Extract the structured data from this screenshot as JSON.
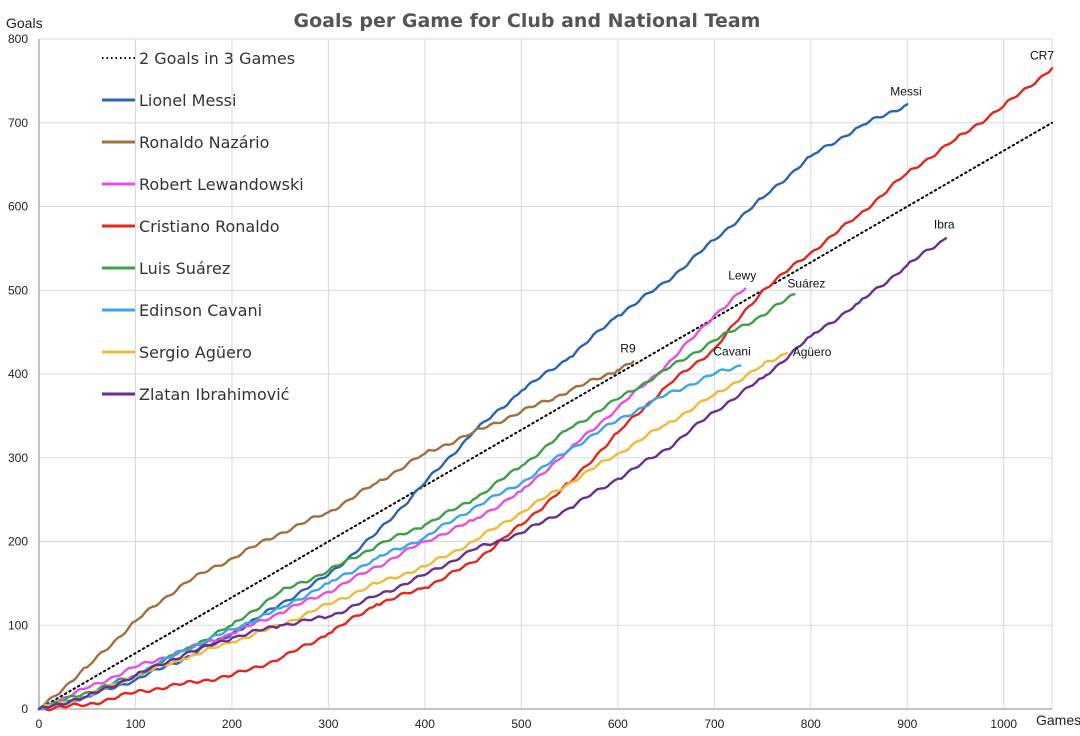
{
  "chart_data": {
    "type": "line",
    "title": "Goals per Game for Club and National Team",
    "xlabel": "Games",
    "ylabel": "Goals",
    "xlim": [
      0,
      1050
    ],
    "ylim": [
      0,
      800
    ],
    "xticks": [
      0,
      100,
      200,
      300,
      400,
      500,
      600,
      700,
      800,
      900,
      1000
    ],
    "yticks": [
      0,
      100,
      200,
      300,
      400,
      500,
      600,
      700,
      800
    ],
    "grid": true,
    "legend_position": "top-left",
    "series": [
      {
        "name": "2 Goals in 3 Games",
        "label": "",
        "color": "#000000",
        "style": "dotted",
        "points": [
          [
            0,
            0
          ],
          [
            1050,
            700
          ]
        ]
      },
      {
        "name": "Lionel Messi",
        "label": "Messi",
        "color": "#2a66ad",
        "style": "solid",
        "points": [
          [
            0,
            0
          ],
          [
            50,
            15
          ],
          [
            100,
            35
          ],
          [
            150,
            60
          ],
          [
            200,
            90
          ],
          [
            250,
            125
          ],
          [
            300,
            160
          ],
          [
            350,
            210
          ],
          [
            400,
            270
          ],
          [
            450,
            330
          ],
          [
            500,
            380
          ],
          [
            550,
            420
          ],
          [
            600,
            470
          ],
          [
            650,
            510
          ],
          [
            700,
            560
          ],
          [
            750,
            610
          ],
          [
            800,
            660
          ],
          [
            850,
            695
          ],
          [
            900,
            722
          ]
        ]
      },
      {
        "name": "Ronaldo Nazário",
        "label": "R9",
        "color": "#a0703e",
        "style": "solid",
        "points": [
          [
            0,
            0
          ],
          [
            50,
            50
          ],
          [
            100,
            105
          ],
          [
            150,
            150
          ],
          [
            200,
            180
          ],
          [
            250,
            210
          ],
          [
            300,
            235
          ],
          [
            350,
            270
          ],
          [
            400,
            305
          ],
          [
            450,
            330
          ],
          [
            500,
            355
          ],
          [
            550,
            380
          ],
          [
            600,
            405
          ],
          [
            616,
            415
          ]
        ]
      },
      {
        "name": "Robert Lewandowski",
        "label": "Lewy",
        "color": "#e84ee0",
        "style": "solid",
        "points": [
          [
            0,
            0
          ],
          [
            50,
            25
          ],
          [
            100,
            50
          ],
          [
            150,
            70
          ],
          [
            200,
            90
          ],
          [
            250,
            115
          ],
          [
            300,
            140
          ],
          [
            350,
            170
          ],
          [
            400,
            200
          ],
          [
            450,
            225
          ],
          [
            500,
            260
          ],
          [
            550,
            310
          ],
          [
            600,
            360
          ],
          [
            650,
            410
          ],
          [
            700,
            470
          ],
          [
            732,
            502
          ]
        ]
      },
      {
        "name": "Cristiano Ronaldo",
        "label": "CR7",
        "color": "#e0281e",
        "style": "solid",
        "points": [
          [
            0,
            0
          ],
          [
            50,
            5
          ],
          [
            100,
            20
          ],
          [
            150,
            30
          ],
          [
            200,
            40
          ],
          [
            250,
            60
          ],
          [
            300,
            90
          ],
          [
            350,
            125
          ],
          [
            400,
            145
          ],
          [
            450,
            175
          ],
          [
            500,
            220
          ],
          [
            550,
            270
          ],
          [
            600,
            330
          ],
          [
            650,
            385
          ],
          [
            700,
            430
          ],
          [
            750,
            500
          ],
          [
            800,
            545
          ],
          [
            850,
            590
          ],
          [
            900,
            640
          ],
          [
            950,
            680
          ],
          [
            1000,
            720
          ],
          [
            1050,
            765
          ]
        ]
      },
      {
        "name": "Luis Suárez",
        "label": "Suárez",
        "color": "#3da047",
        "style": "solid",
        "points": [
          [
            0,
            0
          ],
          [
            50,
            20
          ],
          [
            100,
            40
          ],
          [
            150,
            70
          ],
          [
            200,
            100
          ],
          [
            250,
            140
          ],
          [
            300,
            165
          ],
          [
            350,
            195
          ],
          [
            400,
            220
          ],
          [
            450,
            250
          ],
          [
            500,
            290
          ],
          [
            550,
            335
          ],
          [
            600,
            370
          ],
          [
            650,
            405
          ],
          [
            700,
            440
          ],
          [
            750,
            470
          ],
          [
            783,
            495
          ]
        ]
      },
      {
        "name": "Edinson Cavani",
        "label": "Cavani",
        "color": "#3ba6e8",
        "style": "solid",
        "points": [
          [
            0,
            0
          ],
          [
            50,
            15
          ],
          [
            100,
            40
          ],
          [
            150,
            70
          ],
          [
            200,
            95
          ],
          [
            250,
            120
          ],
          [
            300,
            150
          ],
          [
            350,
            180
          ],
          [
            400,
            205
          ],
          [
            450,
            240
          ],
          [
            500,
            270
          ],
          [
            550,
            310
          ],
          [
            600,
            345
          ],
          [
            650,
            375
          ],
          [
            700,
            400
          ],
          [
            727,
            410
          ]
        ]
      },
      {
        "name": "Sergio Agüero",
        "label": "Agüero",
        "color": "#f2b838",
        "style": "solid",
        "points": [
          [
            0,
            0
          ],
          [
            50,
            15
          ],
          [
            100,
            40
          ],
          [
            150,
            60
          ],
          [
            200,
            80
          ],
          [
            250,
            100
          ],
          [
            300,
            125
          ],
          [
            350,
            150
          ],
          [
            400,
            170
          ],
          [
            450,
            200
          ],
          [
            500,
            235
          ],
          [
            550,
            270
          ],
          [
            600,
            305
          ],
          [
            650,
            340
          ],
          [
            700,
            375
          ],
          [
            750,
            410
          ],
          [
            775,
            425
          ]
        ]
      },
      {
        "name": "Zlatan Ibrahimović",
        "label": "Ibra",
        "color": "#6a2f8f",
        "style": "solid",
        "points": [
          [
            0,
            0
          ],
          [
            50,
            15
          ],
          [
            100,
            40
          ],
          [
            150,
            65
          ],
          [
            200,
            85
          ],
          [
            250,
            100
          ],
          [
            300,
            110
          ],
          [
            350,
            135
          ],
          [
            400,
            160
          ],
          [
            450,
            190
          ],
          [
            500,
            210
          ],
          [
            550,
            240
          ],
          [
            600,
            275
          ],
          [
            650,
            310
          ],
          [
            700,
            355
          ],
          [
            750,
            395
          ],
          [
            800,
            445
          ],
          [
            850,
            485
          ],
          [
            900,
            530
          ],
          [
            940,
            562
          ]
        ]
      }
    ]
  }
}
